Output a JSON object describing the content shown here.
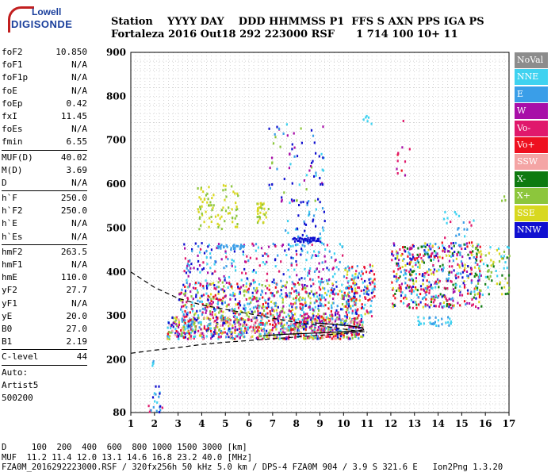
{
  "logo": {
    "line1": "Lowell",
    "line2": "DIGISONDE"
  },
  "header": {
    "row1": [
      "Station",
      "YYYY",
      "DAY",
      "DDD",
      "HHMMSS",
      "P1",
      "FFS",
      "S",
      "AXN",
      "PPS",
      "IGA",
      "PS"
    ],
    "row2": [
      "Fortaleza",
      "2016",
      "Out18",
      "292",
      "223000",
      "RSF",
      "1",
      "714",
      "100",
      "10+",
      "11"
    ]
  },
  "params": [
    {
      "k": "foF2",
      "v": "10.850"
    },
    {
      "k": "foF1",
      "v": "N/A"
    },
    {
      "k": "foF1p",
      "v": "N/A"
    },
    {
      "k": "foE",
      "v": "N/A"
    },
    {
      "k": "foEp",
      "v": "0.42"
    },
    {
      "k": "fxI",
      "v": "11.45"
    },
    {
      "k": "foEs",
      "v": "N/A"
    },
    {
      "k": "fmin",
      "v": "6.55"
    },
    {
      "k": "MUF(D)",
      "v": "40.02"
    },
    {
      "k": "M(D)",
      "v": "3.69"
    },
    {
      "k": "D",
      "v": "N/A"
    },
    {
      "k": "h`F",
      "v": "250.0"
    },
    {
      "k": "h`F2",
      "v": "250.0"
    },
    {
      "k": "h`E",
      "v": "N/A"
    },
    {
      "k": "h`Es",
      "v": "N/A"
    },
    {
      "k": "hmF2",
      "v": "263.5"
    },
    {
      "k": "hmF1",
      "v": "N/A"
    },
    {
      "k": "hmE",
      "v": "110.0"
    },
    {
      "k": "yF2",
      "v": "27.7"
    },
    {
      "k": "yF1",
      "v": "N/A"
    },
    {
      "k": "yE",
      "v": "20.0"
    },
    {
      "k": "B0",
      "v": "27.0"
    },
    {
      "k": "B1",
      "v": "2.19"
    },
    {
      "k": "C-level",
      "v": "44"
    }
  ],
  "auto": {
    "l1": "Auto:",
    "l2": "Artist5",
    "l3": "500200"
  },
  "legend": [
    {
      "label": "NoVal",
      "color": "#8c8c8c"
    },
    {
      "label": "NNE",
      "color": "#3fd2f0"
    },
    {
      "label": "E",
      "color": "#3a9ee8"
    },
    {
      "label": "W",
      "color": "#a80fa8"
    },
    {
      "label": "Vo-",
      "color": "#e0186c"
    },
    {
      "label": "Vo+",
      "color": "#ee1020"
    },
    {
      "label": "SSW",
      "color": "#f4a5a5"
    },
    {
      "label": "X-",
      "color": "#0d7a10"
    },
    {
      "label": "X+",
      "color": "#8cc63c"
    },
    {
      "label": "SSE",
      "color": "#d8d820"
    },
    {
      "label": "NNW",
      "color": "#1010d0"
    }
  ],
  "footer": {
    "row1": "D     100  200  400  600  800 1000 1500 3000 [km]",
    "row2": "MUF  11.2 11.4 12.0 13.1 14.6 16.8 23.2 40.0 [MHz]",
    "row3": "FZA0M_2016292223000.RSF / 320fx256h 50 kHz 5.0 km / DPS-4 FZA0M 904 / 3.9 S 321.6 E   Ion2Png 1.3.20"
  },
  "chart_data": {
    "type": "scatter",
    "xlim": [
      1,
      17
    ],
    "ylim": [
      80,
      900
    ],
    "xticks": [
      "1",
      "2",
      "3",
      "4",
      "5",
      "6",
      "7",
      "8",
      "9",
      "10",
      "11",
      "12",
      "13",
      "14",
      "15",
      "16",
      "17"
    ],
    "yticks": [
      "80",
      "200",
      "300",
      "400",
      "500",
      "600",
      "700",
      "800",
      "900"
    ],
    "xgrid_step": 0.2,
    "ygrid_step": 20,
    "trace_upper": [
      [
        1,
        400
      ],
      [
        2,
        365
      ],
      [
        3,
        340
      ],
      [
        4,
        325
      ],
      [
        5,
        315
      ],
      [
        6,
        305
      ],
      [
        7,
        295
      ],
      [
        8,
        285
      ],
      [
        9,
        278
      ],
      [
        10,
        270
      ],
      [
        10.5,
        266
      ],
      [
        11,
        263
      ]
    ],
    "trace_lower": [
      [
        1,
        215
      ],
      [
        2,
        222
      ],
      [
        3,
        228
      ],
      [
        4,
        235
      ],
      [
        5,
        240
      ],
      [
        6,
        244
      ],
      [
        7,
        248
      ],
      [
        8,
        252
      ],
      [
        9,
        256
      ],
      [
        10,
        260
      ],
      [
        11,
        265
      ]
    ],
    "profile": [
      [
        6.6,
        255
      ],
      [
        7.5,
        258
      ],
      [
        8.4,
        260
      ],
      [
        9.3,
        262
      ],
      [
        10,
        264
      ],
      [
        10.6,
        266
      ],
      [
        10.85,
        268
      ],
      [
        10.8,
        273
      ],
      [
        10.3,
        277
      ],
      [
        9.6,
        281
      ],
      [
        8.8,
        284
      ]
    ],
    "clusters": [
      {
        "x": [
          1.6,
          2.3
        ],
        "y": [
          80,
          100
        ],
        "n": 12,
        "c": [
          10,
          2,
          4
        ]
      },
      {
        "x": [
          1.9,
          2.2
        ],
        "y": [
          100,
          160
        ],
        "n": 10,
        "c": [
          10,
          2,
          1
        ]
      },
      {
        "x": [
          1.8,
          2.0
        ],
        "y": [
          185,
          205
        ],
        "n": 4,
        "c": [
          2,
          1
        ]
      },
      {
        "x": [
          2.5,
          10.8
        ],
        "y": [
          250,
          300
        ],
        "n": 900,
        "c": [
          6,
          9,
          1,
          2,
          8,
          5,
          4,
          10,
          3
        ]
      },
      {
        "x": [
          3,
          10.5
        ],
        "y": [
          300,
          380
        ],
        "n": 600,
        "c": [
          1,
          2,
          3,
          4,
          5,
          9,
          10,
          8
        ]
      },
      {
        "x": [
          3.2,
          10
        ],
        "y": [
          380,
          470
        ],
        "n": 200,
        "c": [
          3,
          4,
          10,
          1,
          2
        ]
      },
      {
        "x": [
          4.6,
          5.8
        ],
        "y": [
          455,
          465
        ],
        "n": 30,
        "c": [
          2
        ]
      },
      {
        "x": [
          3.8,
          5.5
        ],
        "y": [
          500,
          600
        ],
        "n": 80,
        "c": [
          9,
          8
        ]
      },
      {
        "x": [
          6.3,
          6.8
        ],
        "y": [
          510,
          560
        ],
        "n": 30,
        "c": [
          9,
          8
        ]
      },
      {
        "x": [
          7.5,
          9.2
        ],
        "y": [
          440,
          570
        ],
        "n": 60,
        "c": [
          1,
          2,
          10
        ]
      },
      {
        "x": [
          7.8,
          9
        ],
        "y": [
          470,
          480
        ],
        "n": 40,
        "c": [
          10
        ]
      },
      {
        "x": [
          6.8,
          9
        ],
        "y": [
          560,
          740
        ],
        "n": 40,
        "c": [
          10,
          3,
          2,
          8
        ]
      },
      {
        "x": [
          7.3,
          9.2
        ],
        "y": [
          600,
          740
        ],
        "n": 30,
        "c": [
          10,
          1,
          3
        ]
      },
      {
        "x": [
          10,
          11.3
        ],
        "y": [
          300,
          420
        ],
        "n": 140,
        "c": [
          1,
          2,
          10,
          9,
          4,
          5
        ]
      },
      {
        "x": [
          10.8,
          11.3
        ],
        "y": [
          740,
          770
        ],
        "n": 6,
        "c": [
          1
        ]
      },
      {
        "x": [
          12.2,
          12.8
        ],
        "y": [
          620,
          760
        ],
        "n": 12,
        "c": [
          3,
          4,
          5,
          6
        ]
      },
      {
        "x": [
          12,
          15.8
        ],
        "y": [
          320,
          470
        ],
        "n": 500,
        "c": [
          1,
          2,
          3,
          4,
          5,
          10,
          9,
          7
        ]
      },
      {
        "x": [
          14,
          15.5
        ],
        "y": [
          480,
          540
        ],
        "n": 20,
        "c": [
          1,
          2,
          4
        ]
      },
      {
        "x": [
          15.5,
          17
        ],
        "y": [
          350,
          460
        ],
        "n": 80,
        "c": [
          7,
          8,
          1,
          9
        ]
      },
      {
        "x": [
          13.1,
          14.6
        ],
        "y": [
          280,
          300
        ],
        "n": 30,
        "c": [
          1,
          2
        ]
      },
      {
        "x": [
          16.5,
          17
        ],
        "y": [
          560,
          580
        ],
        "n": 3,
        "c": [
          8
        ]
      }
    ]
  }
}
